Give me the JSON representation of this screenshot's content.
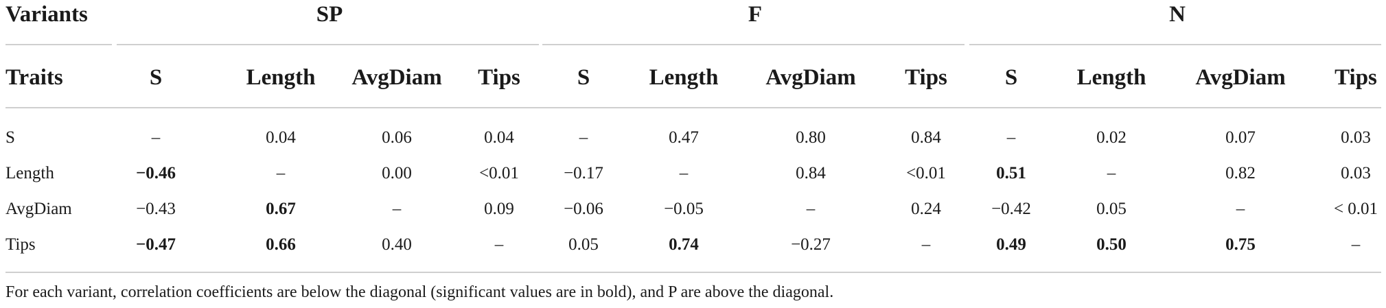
{
  "table": {
    "header_row_1": {
      "variants_label": "Variants",
      "groups": [
        "SP",
        "F",
        "N"
      ]
    },
    "header_row_2": {
      "traits_label": "Traits",
      "columns": [
        "S",
        "Length",
        "AvgDiam",
        "Tips",
        "S",
        "Length",
        "AvgDiam",
        "Tips",
        "S",
        "Length",
        "AvgDiam",
        "Tips"
      ]
    },
    "rows": [
      {
        "trait": "S",
        "cells": [
          {
            "v": "–",
            "b": false
          },
          {
            "v": "0.04",
            "b": false
          },
          {
            "v": "0.06",
            "b": false
          },
          {
            "v": "0.04",
            "b": false
          },
          {
            "v": "–",
            "b": false
          },
          {
            "v": "0.47",
            "b": false
          },
          {
            "v": "0.80",
            "b": false
          },
          {
            "v": "0.84",
            "b": false
          },
          {
            "v": "–",
            "b": false
          },
          {
            "v": "0.02",
            "b": false
          },
          {
            "v": "0.07",
            "b": false
          },
          {
            "v": "0.03",
            "b": false
          }
        ]
      },
      {
        "trait": "Length",
        "cells": [
          {
            "v": "−0.46",
            "b": true
          },
          {
            "v": "–",
            "b": false
          },
          {
            "v": "0.00",
            "b": false
          },
          {
            "v": "<0.01",
            "b": false
          },
          {
            "v": "−0.17",
            "b": false
          },
          {
            "v": "–",
            "b": false
          },
          {
            "v": "0.84",
            "b": false
          },
          {
            "v": "<0.01",
            "b": false
          },
          {
            "v": "0.51",
            "b": true
          },
          {
            "v": "–",
            "b": false
          },
          {
            "v": "0.82",
            "b": false
          },
          {
            "v": "0.03",
            "b": false
          }
        ]
      },
      {
        "trait": "AvgDiam",
        "cells": [
          {
            "v": "−0.43",
            "b": false
          },
          {
            "v": "0.67",
            "b": true
          },
          {
            "v": "–",
            "b": false
          },
          {
            "v": "0.09",
            "b": false
          },
          {
            "v": "−0.06",
            "b": false
          },
          {
            "v": "−0.05",
            "b": false
          },
          {
            "v": "–",
            "b": false
          },
          {
            "v": "0.24",
            "b": false
          },
          {
            "v": "−0.42",
            "b": false
          },
          {
            "v": "0.05",
            "b": false
          },
          {
            "v": "–",
            "b": false
          },
          {
            "v": "< 0.01",
            "b": false
          }
        ]
      },
      {
        "trait": "Tips",
        "cells": [
          {
            "v": "−0.47",
            "b": true
          },
          {
            "v": "0.66",
            "b": true
          },
          {
            "v": "0.40",
            "b": false
          },
          {
            "v": "–",
            "b": false
          },
          {
            "v": "0.05",
            "b": false
          },
          {
            "v": "0.74",
            "b": true
          },
          {
            "v": "−0.27",
            "b": false
          },
          {
            "v": "–",
            "b": false
          },
          {
            "v": "0.49",
            "b": true
          },
          {
            "v": "0.50",
            "b": true
          },
          {
            "v": "0.75",
            "b": true
          },
          {
            "v": "–",
            "b": false
          }
        ]
      }
    ],
    "footnote": "For each variant, correlation coefficients are below the diagonal (significant values are in bold), and P are above the diagonal."
  }
}
